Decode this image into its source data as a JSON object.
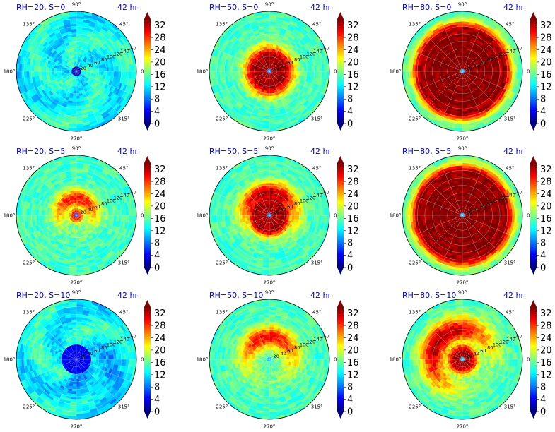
{
  "figure": {
    "time_label": "42 hr",
    "colorbar": {
      "ticks": [
        0,
        4,
        8,
        12,
        16,
        20,
        24,
        28,
        32
      ],
      "range": [
        0,
        34
      ],
      "colormap": "jet"
    },
    "angle_labels": [
      "0°",
      "45°",
      "90°",
      "135°",
      "180°",
      "225°",
      "270°",
      "315°"
    ],
    "radial_labels": [
      "20",
      "40",
      "60",
      "80",
      "100",
      "120",
      "140",
      "160"
    ]
  },
  "chart_data": [
    {
      "type": "heatmap",
      "subtype": "polar",
      "title": "RH=20, S=0",
      "time": "42 hr",
      "rmax": 160,
      "peak_value": 16,
      "core_radius": 0,
      "ring_radius": 0,
      "ring_width": 0,
      "eye_radius": 12,
      "eye_value": 2,
      "asymmetry": "none"
    },
    {
      "type": "heatmap",
      "subtype": "polar",
      "title": "RH=50, S=0",
      "time": "42 hr",
      "rmax": 160,
      "peak_value": 33,
      "core_radius": 35,
      "ring_radius": 40,
      "ring_width": 30,
      "eye_radius": 6,
      "eye_value": 8,
      "asymmetry": "none"
    },
    {
      "type": "heatmap",
      "subtype": "polar",
      "title": "RH=80, S=0",
      "time": "42 hr",
      "rmax": 160,
      "peak_value": 34,
      "core_radius": 95,
      "ring_radius": 110,
      "ring_width": 25,
      "eye_radius": 6,
      "eye_value": 10,
      "asymmetry": "none"
    },
    {
      "type": "heatmap",
      "subtype": "polar",
      "title": "RH=20, S=5",
      "time": "42 hr",
      "rmax": 160,
      "peak_value": 30,
      "core_radius": 5,
      "ring_radius": 45,
      "ring_width": 25,
      "eye_radius": 6,
      "eye_value": 6,
      "asymmetry": "upper"
    },
    {
      "type": "heatmap",
      "subtype": "polar",
      "title": "RH=50, S=5",
      "time": "42 hr",
      "rmax": 160,
      "peak_value": 33,
      "core_radius": 40,
      "ring_radius": 60,
      "ring_width": 30,
      "eye_radius": 8,
      "eye_value": 8,
      "asymmetry": "upper"
    },
    {
      "type": "heatmap",
      "subtype": "polar",
      "title": "RH=80, S=5",
      "time": "42 hr",
      "rmax": 160,
      "peak_value": 34,
      "core_radius": 100,
      "ring_radius": 115,
      "ring_width": 25,
      "eye_radius": 6,
      "eye_value": 10,
      "asymmetry": "none"
    },
    {
      "type": "heatmap",
      "subtype": "polar",
      "title": "RH=20, S=10",
      "time": "42 hr",
      "rmax": 160,
      "peak_value": 20,
      "core_radius": 0,
      "ring_radius": 0,
      "ring_width": 0,
      "eye_radius": 40,
      "eye_value": 4,
      "asymmetry": "lower-right"
    },
    {
      "type": "heatmap",
      "subtype": "polar",
      "title": "RH=50, S=10",
      "time": "42 hr",
      "rmax": 160,
      "peak_value": 30,
      "core_radius": 0,
      "ring_radius": 60,
      "ring_width": 30,
      "eye_radius": 8,
      "eye_value": 10,
      "asymmetry": "upper"
    },
    {
      "type": "heatmap",
      "subtype": "polar",
      "title": "RH=80, S=10",
      "time": "42 hr",
      "rmax": 160,
      "peak_value": 33,
      "core_radius": 20,
      "ring_radius": 80,
      "ring_width": 35,
      "eye_radius": 8,
      "eye_value": 10,
      "asymmetry": "upper-left"
    }
  ]
}
